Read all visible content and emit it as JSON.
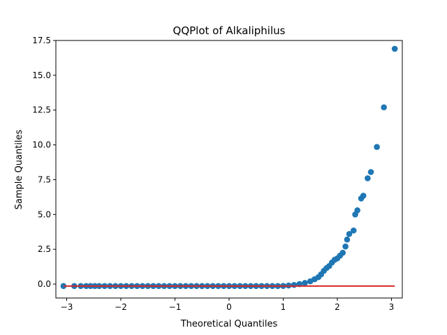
{
  "chart_data": {
    "type": "scatter",
    "title": "QQPlot of Alkaliphilus",
    "xlabel": "Theoretical Quantiles",
    "ylabel": "Sample Quantiles",
    "xlim": [
      -3.2,
      3.2
    ],
    "ylim": [
      -1.0,
      17.5
    ],
    "xticks": [
      -3,
      -2,
      -1,
      0,
      1,
      2,
      3
    ],
    "xtick_labels": [
      "−3",
      "−2",
      "−1",
      "0",
      "1",
      "2",
      "3"
    ],
    "yticks": [
      0.0,
      2.5,
      5.0,
      7.5,
      10.0,
      12.5,
      15.0,
      17.5
    ],
    "ytick_labels": [
      "0.0",
      "2.5",
      "5.0",
      "7.5",
      "10.0",
      "12.5",
      "15.0",
      "17.5"
    ],
    "grid": false,
    "series": [
      {
        "values": [
          [
            -3.06,
            -0.14
          ],
          [
            -2.86,
            -0.14
          ],
          [
            -2.74,
            -0.14
          ],
          [
            -2.64,
            -0.14
          ],
          [
            -2.56,
            -0.14
          ],
          [
            -2.48,
            -0.14
          ],
          [
            -2.4,
            -0.14
          ],
          [
            -2.3,
            -0.14
          ],
          [
            -2.2,
            -0.14
          ],
          [
            -2.1,
            -0.14
          ],
          [
            -2.0,
            -0.14
          ],
          [
            -1.9,
            -0.14
          ],
          [
            -1.8,
            -0.14
          ],
          [
            -1.7,
            -0.14
          ],
          [
            -1.6,
            -0.14
          ],
          [
            -1.5,
            -0.14
          ],
          [
            -1.4,
            -0.14
          ],
          [
            -1.3,
            -0.14
          ],
          [
            -1.2,
            -0.14
          ],
          [
            -1.1,
            -0.14
          ],
          [
            -1.0,
            -0.14
          ],
          [
            -0.9,
            -0.14
          ],
          [
            -0.8,
            -0.14
          ],
          [
            -0.7,
            -0.14
          ],
          [
            -0.6,
            -0.14
          ],
          [
            -0.5,
            -0.14
          ],
          [
            -0.4,
            -0.14
          ],
          [
            -0.3,
            -0.14
          ],
          [
            -0.2,
            -0.14
          ],
          [
            -0.1,
            -0.14
          ],
          [
            0.0,
            -0.14
          ],
          [
            0.1,
            -0.14
          ],
          [
            0.2,
            -0.14
          ],
          [
            0.3,
            -0.14
          ],
          [
            0.4,
            -0.14
          ],
          [
            0.5,
            -0.14
          ],
          [
            0.6,
            -0.14
          ],
          [
            0.7,
            -0.14
          ],
          [
            0.8,
            -0.14
          ],
          [
            0.9,
            -0.14
          ],
          [
            1.0,
            -0.13
          ],
          [
            1.1,
            -0.1
          ],
          [
            1.2,
            -0.06
          ],
          [
            1.3,
            0.0
          ],
          [
            1.4,
            0.08
          ],
          [
            1.5,
            0.2
          ],
          [
            1.58,
            0.35
          ],
          [
            1.65,
            0.5
          ],
          [
            1.7,
            0.7
          ],
          [
            1.75,
            0.95
          ],
          [
            1.8,
            1.15
          ],
          [
            1.85,
            1.3
          ],
          [
            1.9,
            1.55
          ],
          [
            1.95,
            1.75
          ],
          [
            2.0,
            1.85
          ],
          [
            2.05,
            2.05
          ],
          [
            2.1,
            2.25
          ],
          [
            2.15,
            2.7
          ],
          [
            2.18,
            3.2
          ],
          [
            2.22,
            3.6
          ],
          [
            2.3,
            3.85
          ],
          [
            2.33,
            5.0
          ],
          [
            2.37,
            5.3
          ],
          [
            2.44,
            6.15
          ],
          [
            2.48,
            6.35
          ],
          [
            2.56,
            7.6
          ],
          [
            2.62,
            8.05
          ],
          [
            2.73,
            9.85
          ],
          [
            2.86,
            12.7
          ],
          [
            3.06,
            16.9
          ]
        ],
        "color": "#1f77b4"
      },
      {
        "type": "line",
        "values": [
          [
            -3.06,
            -0.14
          ],
          [
            3.06,
            -0.14
          ]
        ],
        "color": "#d62728"
      }
    ]
  }
}
